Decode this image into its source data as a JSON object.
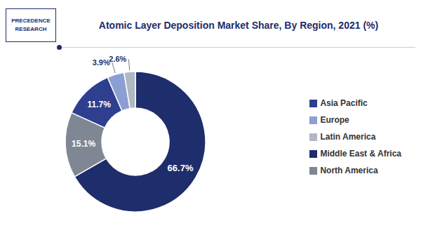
{
  "chart_data": {
    "type": "pie",
    "title": "Atomic Layer Deposition Market Share, By Region, 2021 (%)",
    "categories": [
      "Middle East & Africa",
      "North America",
      "Asia Pacific",
      "Europe",
      "Latin America"
    ],
    "values": [
      66.7,
      15.1,
      11.7,
      3.9,
      2.6
    ],
    "value_labels": [
      "66.7%",
      "15.1%",
      "11.7%",
      "3.9%",
      "2.6%"
    ],
    "colors": [
      "#1e2d6b",
      "#7f8794",
      "#2e3f8f",
      "#8b9fd4",
      "#b0b8c4"
    ],
    "data_labels": true,
    "legend": "right",
    "annotations": [
      "PRECEDENCE",
      "RESEARCH"
    ]
  }
}
